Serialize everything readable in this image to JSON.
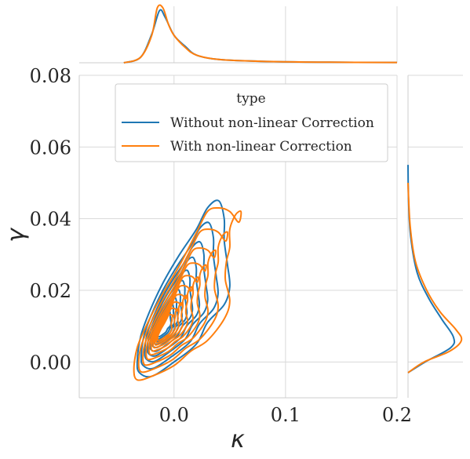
{
  "chart_data": {
    "type": "kde-jointplot",
    "xlabel": "κ",
    "ylabel": "γ",
    "xlim": [
      -0.085,
      0.2
    ],
    "ylim": [
      -0.01,
      0.08
    ],
    "xticks": [
      0.0,
      0.1,
      0.2
    ],
    "xtick_labels": [
      "0.0",
      "0.1",
      "0.2"
    ],
    "yticks": [
      0.0,
      0.02,
      0.04,
      0.06,
      0.08
    ],
    "ytick_labels": [
      "0.00",
      "0.02",
      "0.04",
      "0.06",
      "0.08"
    ],
    "grid": true,
    "legend": {
      "title": "type",
      "placement": "top-center",
      "entries": [
        "Without non-linear Correction",
        "With non-linear Correction"
      ]
    },
    "series": [
      {
        "name": "Without non-linear Correction",
        "color": "#1f77b4",
        "center": [
          -0.012,
          0.009
        ],
        "x_marginal": [
          [
            -0.045,
            0.0
          ],
          [
            -0.03,
            0.1
          ],
          [
            -0.02,
            0.52
          ],
          [
            -0.013,
            0.95
          ],
          [
            -0.008,
            0.83
          ],
          [
            0.0,
            0.5
          ],
          [
            0.01,
            0.3
          ],
          [
            0.02,
            0.14
          ],
          [
            0.04,
            0.06
          ],
          [
            0.08,
            0.025
          ],
          [
            0.14,
            0.01
          ],
          [
            0.2,
            0.005
          ]
        ],
        "y_marginal": [
          [
            -0.003,
            0.0
          ],
          [
            0.0,
            0.32
          ],
          [
            0.004,
            0.8
          ],
          [
            0.007,
            0.85
          ],
          [
            0.012,
            0.63
          ],
          [
            0.018,
            0.38
          ],
          [
            0.025,
            0.17
          ],
          [
            0.035,
            0.05
          ],
          [
            0.045,
            0.01
          ],
          [
            0.055,
            0.0
          ]
        ],
        "outer_contour": [
          [
            -0.033,
            0.0
          ],
          [
            -0.031,
            -0.003
          ],
          [
            -0.02,
            -0.004
          ],
          [
            0.0,
            0.0
          ],
          [
            0.02,
            0.005
          ],
          [
            0.03,
            0.011
          ],
          [
            0.045,
            0.016
          ],
          [
            0.05,
            0.021
          ],
          [
            0.048,
            0.027
          ],
          [
            0.045,
            0.034
          ],
          [
            0.045,
            0.04
          ],
          [
            0.04,
            0.045
          ],
          [
            0.03,
            0.043
          ],
          [
            0.02,
            0.037
          ],
          [
            0.005,
            0.03
          ],
          [
            -0.01,
            0.022
          ],
          [
            -0.022,
            0.014
          ],
          [
            -0.03,
            0.007
          ]
        ]
      },
      {
        "name": "With non-linear Correction",
        "color": "#ff7f0e",
        "center": [
          -0.011,
          0.008
        ],
        "x_marginal": [
          [
            -0.045,
            0.0
          ],
          [
            -0.03,
            0.1
          ],
          [
            -0.02,
            0.5
          ],
          [
            -0.015,
            1.0
          ],
          [
            -0.01,
            1.0
          ],
          [
            -0.005,
            0.7
          ],
          [
            0.0,
            0.5
          ],
          [
            0.01,
            0.28
          ],
          [
            0.02,
            0.14
          ],
          [
            0.04,
            0.06
          ],
          [
            0.08,
            0.025
          ],
          [
            0.14,
            0.01
          ],
          [
            0.2,
            0.005
          ]
        ],
        "y_marginal": [
          [
            -0.003,
            0.0
          ],
          [
            0.0,
            0.3
          ],
          [
            0.003,
            0.78
          ],
          [
            0.006,
            1.0
          ],
          [
            0.009,
            0.9
          ],
          [
            0.014,
            0.6
          ],
          [
            0.02,
            0.35
          ],
          [
            0.028,
            0.14
          ],
          [
            0.038,
            0.04
          ],
          [
            0.05,
            0.0
          ]
        ],
        "outer_contour": [
          [
            -0.036,
            -0.002
          ],
          [
            -0.033,
            -0.005
          ],
          [
            -0.02,
            -0.004
          ],
          [
            0.0,
            -0.001
          ],
          [
            0.015,
            0.003
          ],
          [
            0.03,
            0.006
          ],
          [
            0.045,
            0.012
          ],
          [
            0.05,
            0.017
          ],
          [
            0.046,
            0.023
          ],
          [
            0.047,
            0.028
          ],
          [
            0.05,
            0.032
          ],
          [
            0.05,
            0.037
          ],
          [
            0.055,
            0.041
          ],
          [
            0.06,
            0.042
          ],
          [
            0.058,
            0.039
          ],
          [
            0.05,
            0.042
          ],
          [
            0.04,
            0.043
          ],
          [
            0.03,
            0.042
          ],
          [
            0.02,
            0.036
          ],
          [
            0.005,
            0.027
          ],
          [
            -0.012,
            0.018
          ],
          [
            -0.025,
            0.01
          ],
          [
            -0.033,
            0.004
          ]
        ]
      }
    ]
  }
}
